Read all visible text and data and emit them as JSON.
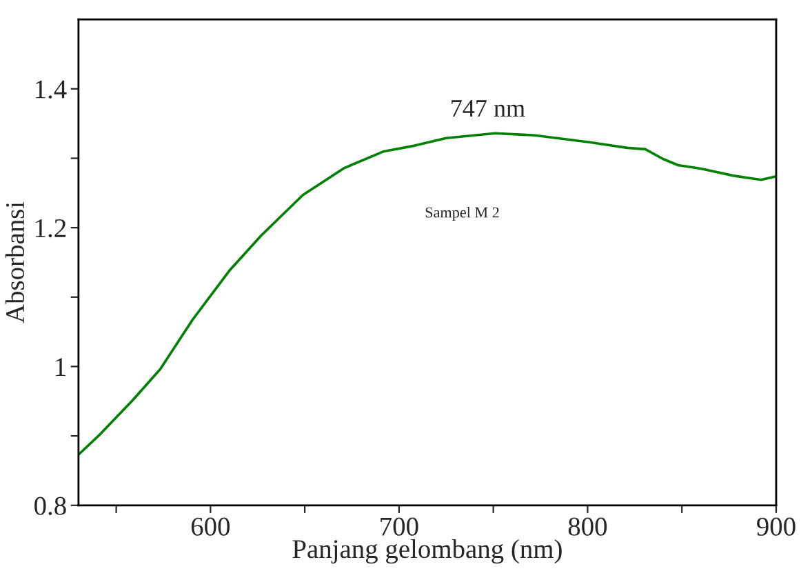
{
  "chart_data": {
    "type": "line",
    "xlabel": "Panjang gelombang (nm)",
    "ylabel": "Absorbansi",
    "x": [
      530,
      541.7,
      558.6,
      573.3,
      590.4,
      610,
      627,
      649,
      671,
      692,
      708,
      725,
      751,
      772,
      801,
      821,
      830.6,
      840,
      848,
      860,
      877,
      892,
      900
    ],
    "series": [
      {
        "color": "#008000",
        "values": [
          0.873,
          0.903,
          0.951,
          0.996,
          1.067,
          1.138,
          1.189,
          1.247,
          1.286,
          1.31,
          1.318,
          1.329,
          1.336,
          1.333,
          1.323,
          1.315,
          1.313,
          1.299,
          1.29,
          1.285,
          1.275,
          1.269,
          1.274
        ]
      }
    ],
    "xlim": [
      530,
      900
    ],
    "ylim": [
      0.8,
      1.5
    ],
    "xticks": [
      {
        "value": 550,
        "label": null
      },
      600,
      {
        "value": 650,
        "label": null
      },
      700,
      {
        "value": 750,
        "label": null
      },
      800,
      {
        "value": 850,
        "label": null
      },
      900
    ],
    "yticks": [
      0.8,
      {
        "value": 0.9,
        "label": null
      },
      1,
      {
        "value": 1.1,
        "label": null
      },
      1.2,
      {
        "value": 1.3,
        "label": null
      },
      1.4
    ],
    "annotations": [
      {
        "text": "747 nm",
        "x": 747,
        "y": 1.336
      },
      "Sampel M 2"
    ],
    "grid": false,
    "marker": "none",
    "line_style": "solid"
  }
}
